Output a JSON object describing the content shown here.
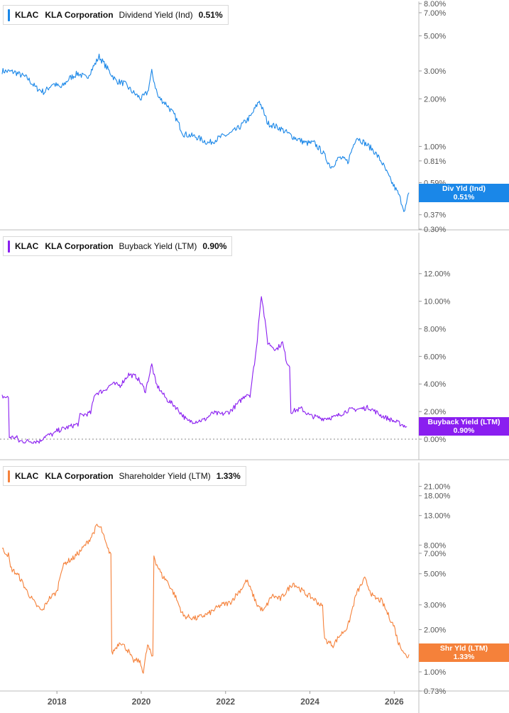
{
  "colors": {
    "dividend": "#1a87e8",
    "buyback": "#8a1ef0",
    "shareholder": "#f5813a",
    "axis_text": "#555555",
    "grid": "#cfcfcf"
  },
  "chart_data": [
    {
      "type": "line",
      "scale": "log",
      "legend": {
        "ticker": "KLAC",
        "company": "KLA Corporation",
        "metric": "Dividend Yield (Ind)",
        "value": "0.51%"
      },
      "end_tag": {
        "line1": "Div Yld (Ind)",
        "line2": "0.51%"
      },
      "ylim": [
        0.3,
        8.0
      ],
      "yticks": [
        8.0,
        7.0,
        5.0,
        3.0,
        2.0,
        1.0,
        0.81,
        0.59,
        0.37,
        0.3
      ],
      "ytick_labels": [
        "8.00%",
        "7.00%",
        "5.00%",
        "3.00%",
        "2.00%",
        "1.00%",
        "0.81%",
        "0.59%",
        "0.37%",
        "0.30%"
      ],
      "series": [
        {
          "x": [
            2016.7,
            2017.0,
            2017.3,
            2017.5,
            2017.7,
            2017.9,
            2018.1,
            2018.3,
            2018.5,
            2018.7,
            2018.9,
            2019.0,
            2019.2,
            2019.4,
            2019.6,
            2019.8,
            2020.0,
            2020.15,
            2020.25,
            2020.4,
            2020.6,
            2020.8,
            2021.0,
            2021.3,
            2021.6,
            2021.9,
            2022.1,
            2022.3,
            2022.6,
            2022.8,
            2023.0,
            2023.3,
            2023.6,
            2023.9,
            2024.1,
            2024.3,
            2024.5,
            2024.7,
            2024.9,
            2025.1,
            2025.3,
            2025.5,
            2025.7,
            2025.9,
            2026.1,
            2026.25,
            2026.35
          ],
          "values": [
            3.0,
            2.95,
            2.7,
            2.35,
            2.2,
            2.5,
            2.35,
            2.7,
            2.9,
            2.7,
            3.3,
            3.7,
            3.1,
            2.6,
            2.5,
            2.2,
            2.0,
            2.2,
            2.95,
            2.05,
            1.85,
            1.55,
            1.2,
            1.15,
            1.05,
            1.15,
            1.2,
            1.3,
            1.55,
            1.95,
            1.4,
            1.3,
            1.15,
            1.05,
            1.05,
            0.92,
            0.74,
            0.85,
            0.8,
            1.15,
            1.05,
            0.95,
            0.8,
            0.62,
            0.5,
            0.39,
            0.51
          ]
        }
      ]
    },
    {
      "type": "line",
      "scale": "linear",
      "legend": {
        "ticker": "KLAC",
        "company": "KLA Corporation",
        "metric": "Buyback Yield (LTM)",
        "value": "0.90%"
      },
      "end_tag": {
        "line1": "Buyback Yield (LTM)",
        "line2": "0.90%"
      },
      "ylim": [
        0.0,
        12.5
      ],
      "yticks": [
        12.0,
        10.0,
        8.0,
        6.0,
        4.0,
        2.0,
        0.0
      ],
      "ytick_labels": [
        "12.00%",
        "10.00%",
        "8.00%",
        "6.00%",
        "4.00%",
        "2.00%",
        "0.00%"
      ],
      "series": [
        {
          "x": [
            2016.7,
            2016.85,
            2016.87,
            2017.05,
            2017.1,
            2017.6,
            2017.7,
            2017.95,
            2018.0,
            2018.3,
            2018.5,
            2018.55,
            2018.8,
            2018.9,
            2019.1,
            2019.3,
            2019.5,
            2019.7,
            2019.9,
            2020.1,
            2020.25,
            2020.35,
            2020.6,
            2020.8,
            2021.1,
            2021.3,
            2021.5,
            2021.7,
            2021.9,
            2022.1,
            2022.3,
            2022.5,
            2022.58,
            2022.75,
            2022.78,
            2022.85,
            2023.0,
            2023.2,
            2023.35,
            2023.45,
            2023.52,
            2023.55,
            2023.8,
            2024.0,
            2024.3,
            2024.6,
            2024.9,
            2025.2,
            2025.4,
            2025.7,
            2026.0,
            2026.3
          ],
          "values": [
            3.1,
            3.0,
            0.15,
            0.1,
            -0.15,
            -0.15,
            0.2,
            0.4,
            0.6,
            0.9,
            1.1,
            1.7,
            1.9,
            3.3,
            3.5,
            4.0,
            3.9,
            4.7,
            4.5,
            3.5,
            5.4,
            4.0,
            2.9,
            2.4,
            1.3,
            1.3,
            1.4,
            1.9,
            1.8,
            2.0,
            2.6,
            3.3,
            3.2,
            7.0,
            8.5,
            10.5,
            7.0,
            6.5,
            7.0,
            5.6,
            5.3,
            2.0,
            2.2,
            1.7,
            1.5,
            1.6,
            2.1,
            2.2,
            2.3,
            1.7,
            1.3,
            0.9
          ]
        }
      ]
    },
    {
      "type": "line",
      "scale": "log",
      "legend": {
        "ticker": "KLAC",
        "company": "KLA Corporation",
        "metric": "Shareholder Yield (LTM)",
        "value": "1.33%"
      },
      "end_tag": {
        "line1": "Shr Yld (LTM)",
        "line2": "1.33%"
      },
      "ylim": [
        0.73,
        24.0
      ],
      "yticks": [
        21.0,
        18.0,
        13.0,
        8.0,
        7.0,
        5.0,
        3.0,
        2.0,
        1.0,
        0.73
      ],
      "ytick_labels": [
        "21.00%",
        "18.00%",
        "13.00%",
        "8.00%",
        "7.00%",
        "5.00%",
        "3.00%",
        "2.00%",
        "1.00%",
        "0.73%"
      ],
      "series": [
        {
          "x": [
            2016.7,
            2016.85,
            2016.9,
            2017.1,
            2017.3,
            2017.5,
            2017.65,
            2017.8,
            2017.85,
            2018.0,
            2018.1,
            2018.2,
            2018.4,
            2018.6,
            2018.8,
            2018.95,
            2019.05,
            2019.2,
            2019.28,
            2019.3,
            2019.5,
            2019.7,
            2019.8,
            2019.95,
            2020.05,
            2020.15,
            2020.25,
            2020.3,
            2020.35,
            2020.5,
            2020.6,
            2020.8,
            2021.0,
            2021.3,
            2021.6,
            2021.9,
            2022.1,
            2022.4,
            2022.5,
            2022.75,
            2022.9,
            2023.1,
            2023.3,
            2023.6,
            2023.9,
            2024.1,
            2024.3,
            2024.35,
            2024.55,
            2024.7,
            2024.9,
            2025.1,
            2025.3,
            2025.5,
            2025.7,
            2025.9,
            2026.0,
            2026.1,
            2026.2,
            2026.3,
            2026.35
          ],
          "values": [
            7.5,
            6.8,
            5.5,
            4.8,
            3.7,
            3.0,
            2.7,
            3.3,
            3.4,
            3.7,
            5.3,
            6.0,
            6.5,
            7.5,
            9.0,
            11.0,
            10.5,
            7.5,
            7.0,
            1.35,
            1.65,
            1.4,
            1.2,
            1.2,
            1.0,
            1.55,
            1.3,
            6.8,
            6.0,
            4.8,
            4.5,
            3.5,
            2.5,
            2.4,
            2.6,
            3.0,
            3.1,
            4.0,
            4.5,
            3.0,
            2.7,
            3.5,
            3.3,
            4.3,
            3.6,
            3.3,
            2.9,
            1.7,
            1.55,
            1.8,
            2.1,
            3.6,
            4.6,
            3.4,
            3.2,
            2.4,
            2.1,
            1.6,
            1.45,
            1.25,
            1.33
          ]
        }
      ]
    }
  ],
  "x_axis": {
    "ticks": [
      2018,
      2020,
      2022,
      2024,
      2026
    ],
    "labels": [
      "2018",
      "2020",
      "2022",
      "2024",
      "2026"
    ]
  }
}
